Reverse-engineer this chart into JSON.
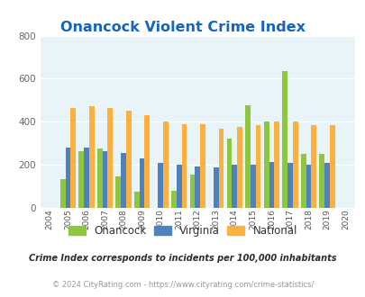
{
  "title": "Onancock Violent Crime Index",
  "years": [
    2004,
    2005,
    2006,
    2007,
    2008,
    2009,
    2010,
    2011,
    2012,
    2013,
    2014,
    2015,
    2016,
    2017,
    2018,
    2019,
    2020
  ],
  "onancock": [
    null,
    135,
    265,
    275,
    145,
    75,
    null,
    80,
    155,
    null,
    320,
    475,
    400,
    635,
    250,
    250,
    null
  ],
  "virginia": [
    null,
    280,
    280,
    265,
    255,
    228,
    210,
    200,
    193,
    190,
    200,
    200,
    215,
    207,
    202,
    207,
    null
  ],
  "national": [
    null,
    465,
    473,
    465,
    450,
    430,
    403,
    390,
    390,
    368,
    378,
    385,
    400,
    400,
    385,
    383,
    null
  ],
  "onancock_color": "#8dc63f",
  "virginia_color": "#4f81bd",
  "national_color": "#fbb040",
  "bg_color": "#e8f4f8",
  "title_color": "#1565c0",
  "ylim": [
    0,
    800
  ],
  "yticks": [
    0,
    200,
    400,
    600,
    800
  ],
  "bar_width": 0.28,
  "footnote1": "Crime Index corresponds to incidents per 100,000 inhabitants",
  "footnote2": "© 2024 CityRating.com - https://www.cityrating.com/crime-statistics/",
  "legend_labels": [
    "Onancock",
    "Virginia",
    "National"
  ]
}
